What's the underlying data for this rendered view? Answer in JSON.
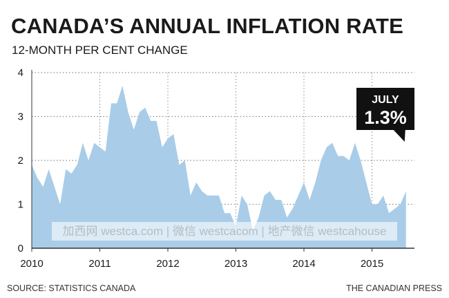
{
  "chart_data": {
    "type": "area",
    "title": "CANADA’S ANNUAL INFLATION RATE",
    "subtitle": "12-MONTH PER CENT CHANGE",
    "x_start": "2010-01",
    "x_end": "2015-07",
    "xtick_labels": [
      "2010",
      "2011",
      "2012",
      "2013",
      "2014",
      "2015"
    ],
    "ylim": [
      0,
      4
    ],
    "ytick_labels": [
      "0",
      "1",
      "2",
      "3",
      "4"
    ],
    "grid": "horizontal dotted",
    "colors": {
      "area": "#a9cde8",
      "text": "#1a1a1a",
      "callout_bg": "#111111",
      "callout_text": "#ffffff"
    },
    "series": [
      {
        "values": [
          1.9,
          1.6,
          1.4,
          1.8,
          1.4,
          1.0,
          1.8,
          1.7,
          1.9,
          2.4,
          2.0,
          2.4,
          2.3,
          2.2,
          3.3,
          3.3,
          3.7,
          3.1,
          2.7,
          3.1,
          3.2,
          2.9,
          2.9,
          2.3,
          2.5,
          2.6,
          1.9,
          2.0,
          1.2,
          1.5,
          1.3,
          1.2,
          1.2,
          1.2,
          0.8,
          0.8,
          0.5,
          1.2,
          1.0,
          0.4,
          0.7,
          1.2,
          1.3,
          1.1,
          1.1,
          0.7,
          0.9,
          1.2,
          1.5,
          1.1,
          1.5,
          2.0,
          2.3,
          2.4,
          2.1,
          2.1,
          2.0,
          2.4,
          2.0,
          1.5,
          1.0,
          1.0,
          1.2,
          0.8,
          0.9,
          1.0,
          1.3
        ]
      }
    ],
    "annotation": {
      "label": "JULY",
      "value": "1.3%"
    }
  },
  "source": "SOURCE: STATISTICS CANADA",
  "credit": "THE CANADIAN PRESS",
  "watermark": "加西网 westca.com | 微信 westcacom | 地产微信 westcahouse"
}
